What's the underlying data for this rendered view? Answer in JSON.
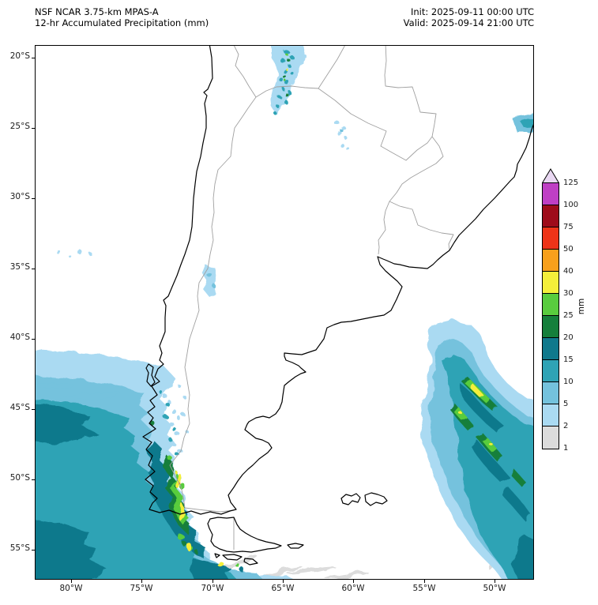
{
  "header": {
    "model": "NSF NCAR 3.75-km MPAS-A",
    "product": "12-hr Accumulated Precipitation (mm)",
    "init": "Init: 2025-09-11 00:00 UTC",
    "valid": "Valid: 2025-09-14 21:00 UTC"
  },
  "axes": {
    "lat_ticks": [
      "20°S",
      "25°S",
      "30°S",
      "35°S",
      "40°S",
      "45°S",
      "50°S",
      "55°S"
    ],
    "lon_ticks": [
      "80°W",
      "75°W",
      "70°W",
      "65°W",
      "60°W",
      "55°W",
      "50°W"
    ]
  },
  "colorbar": {
    "unit": "mm",
    "levels": [
      1,
      2,
      5,
      10,
      15,
      20,
      25,
      30,
      40,
      50,
      75,
      100,
      125
    ],
    "colors": [
      "#dcdcdc",
      "#aadaf2",
      "#74c2dd",
      "#2fa3b5",
      "#10798c",
      "#157f3b",
      "#59cc3e",
      "#f4ef3a",
      "#f8a01c",
      "#ee3418",
      "#9e0c1a",
      "#bf3fc4"
    ],
    "arrow_color": "#e9d8f2"
  },
  "map_colors": {
    "coastline": "#000000",
    "borders": "#a0a0a0"
  }
}
